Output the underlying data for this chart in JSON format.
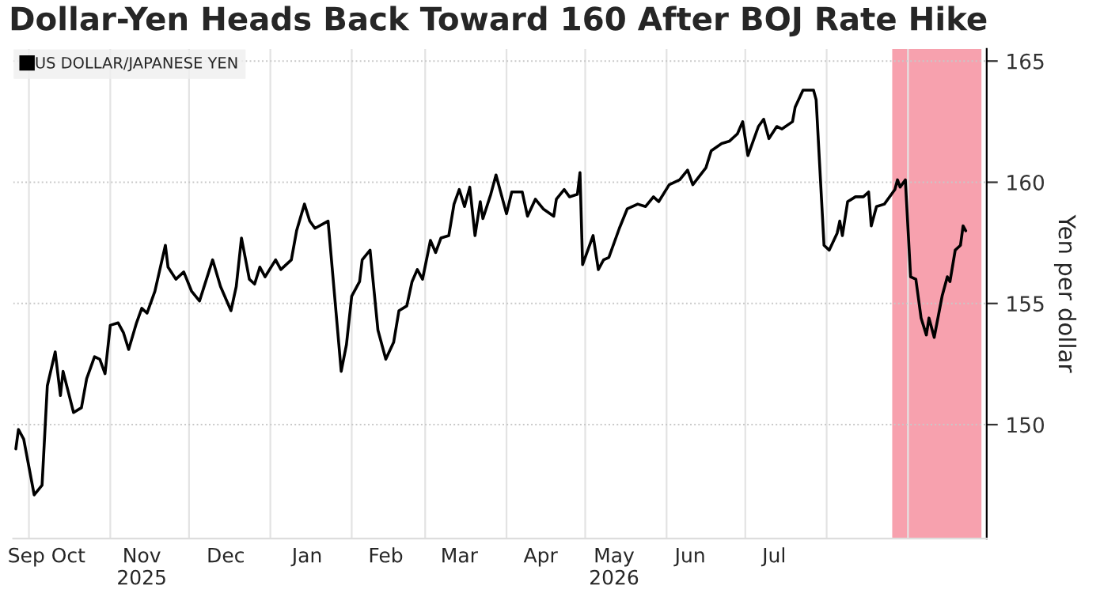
{
  "chart_data": {
    "type": "line",
    "title": "Dollar-Yen Heads Back Toward 160 After BOJ Rate Hike",
    "ylabel": "Yen per dollar",
    "x": [
      "2025-09-26",
      "2025-09-27",
      "2025-09-29",
      "2025-10-03",
      "2025-10-06",
      "2025-10-08",
      "2025-10-11",
      "2025-10-13",
      "2025-10-14",
      "2025-10-18",
      "2025-10-21",
      "2025-10-23",
      "2025-10-26",
      "2025-10-28",
      "2025-10-30",
      "2025-11-01",
      "2025-11-04",
      "2025-11-06",
      "2025-11-08",
      "2025-11-11",
      "2025-11-13",
      "2025-11-15",
      "2025-11-18",
      "2025-11-22",
      "2025-11-23",
      "2025-11-26",
      "2025-11-29",
      "2025-12-02",
      "2025-12-05",
      "2025-12-10",
      "2025-12-13",
      "2025-12-17",
      "2025-12-19",
      "2025-12-21",
      "2025-12-24",
      "2025-12-26",
      "2025-12-28",
      "2025-12-30",
      "2026-01-03",
      "2026-01-05",
      "2026-01-09",
      "2026-01-11",
      "2026-01-14",
      "2026-01-16",
      "2026-01-18",
      "2026-01-23",
      "2026-01-28",
      "2026-01-30",
      "2026-02-01",
      "2026-02-04",
      "2026-02-05",
      "2026-02-08",
      "2026-02-11",
      "2026-02-14",
      "2026-02-17",
      "2026-02-19",
      "2026-02-22",
      "2026-02-24",
      "2026-02-26",
      "2026-02-28",
      "2026-03-03",
      "2026-03-05",
      "2026-03-07",
      "2026-03-10",
      "2026-03-12",
      "2026-03-14",
      "2026-03-16",
      "2026-03-18",
      "2026-03-20",
      "2026-03-22",
      "2026-03-23",
      "2026-03-26",
      "2026-03-28",
      "2026-04-01",
      "2026-04-03",
      "2026-04-07",
      "2026-04-09",
      "2026-04-12",
      "2026-04-15",
      "2026-04-19",
      "2026-04-20",
      "2026-04-23",
      "2026-04-25",
      "2026-04-28",
      "2026-04-29",
      "2026-04-30",
      "2026-05-04",
      "2026-05-06",
      "2026-05-08",
      "2026-05-10",
      "2026-05-14",
      "2026-05-17",
      "2026-05-21",
      "2026-05-24",
      "2026-05-27",
      "2026-05-29",
      "2026-06-02",
      "2026-06-06",
      "2026-06-09",
      "2026-06-11",
      "2026-06-16",
      "2026-06-18",
      "2026-06-22",
      "2026-06-25",
      "2026-06-28",
      "2026-06-30",
      "2026-07-02",
      "2026-07-06",
      "2026-07-08",
      "2026-07-10",
      "2026-07-13",
      "2026-07-15",
      "2026-07-19",
      "2026-07-20",
      "2026-07-23",
      "2026-07-27",
      "2026-07-28",
      "2026-07-31",
      "2026-08-02",
      "2026-08-05",
      "2026-08-06",
      "2026-08-07",
      "2026-08-09",
      "2026-08-12",
      "2026-08-15",
      "2026-08-17",
      "2026-08-18",
      "2026-08-20",
      "2026-08-23",
      "2026-08-27",
      "2026-08-28",
      "2026-08-29",
      "2026-08-31",
      "2026-09-02",
      "2026-09-04",
      "2026-09-06",
      "2026-09-08",
      "2026-09-09",
      "2026-09-11",
      "2026-09-14",
      "2026-09-16",
      "2026-09-17",
      "2026-09-19",
      "2026-09-21",
      "2026-09-22",
      "2026-09-23"
    ],
    "series": [
      {
        "name": "US DOLLAR/JAPANESE YEN",
        "color": "#000000",
        "values": [
          149.0,
          149.8,
          149.4,
          147.1,
          147.5,
          151.6,
          153.0,
          151.2,
          152.2,
          150.5,
          150.7,
          151.9,
          152.8,
          152.7,
          152.1,
          154.1,
          154.2,
          153.8,
          153.1,
          154.2,
          154.8,
          154.6,
          155.5,
          157.4,
          156.5,
          156.0,
          156.3,
          155.5,
          155.1,
          156.8,
          155.7,
          154.7,
          155.7,
          157.7,
          156.0,
          155.8,
          156.5,
          156.1,
          156.8,
          156.4,
          156.8,
          158.0,
          159.1,
          158.4,
          158.1,
          158.4,
          152.2,
          153.3,
          155.3,
          155.9,
          156.8,
          157.2,
          153.9,
          152.7,
          153.4,
          154.7,
          154.9,
          155.9,
          156.4,
          156.0,
          157.6,
          157.1,
          157.7,
          157.8,
          159.1,
          159.7,
          159.0,
          159.8,
          157.8,
          159.2,
          158.5,
          159.5,
          160.3,
          158.7,
          159.6,
          159.6,
          158.6,
          159.3,
          158.9,
          158.6,
          159.3,
          159.7,
          159.4,
          159.5,
          160.4,
          156.6,
          157.8,
          156.4,
          156.8,
          156.9,
          158.1,
          158.9,
          159.1,
          159.0,
          159.4,
          159.2,
          159.9,
          160.1,
          160.5,
          159.9,
          160.6,
          161.3,
          161.6,
          161.7,
          162.0,
          162.5,
          161.1,
          162.3,
          162.6,
          161.8,
          162.3,
          162.2,
          162.5,
          163.1,
          163.8,
          163.8,
          163.4,
          157.4,
          157.2,
          157.9,
          158.4,
          157.8,
          159.2,
          159.4,
          159.4,
          159.6,
          158.2,
          159.0,
          159.1,
          159.7,
          160.1,
          159.8,
          160.1,
          156.1,
          156.0,
          154.4,
          153.7,
          154.4,
          153.6,
          155.3,
          156.1,
          155.9,
          157.2,
          157.4,
          158.2,
          158.0
        ]
      }
    ],
    "xlim": [
      "2025-09-25",
      "2026-10-01"
    ],
    "xticks": [
      {
        "value": "2025-10-01",
        "label": null
      },
      {
        "value": "2025-11-01",
        "label": null
      },
      {
        "value": "2025-12-01",
        "label": null
      },
      {
        "value": "2026-01-01",
        "label": null
      },
      {
        "value": "2026-02-01",
        "label": null
      },
      {
        "value": "2026-03-01",
        "label": null
      },
      {
        "value": "2026-04-01",
        "label": null
      },
      {
        "value": "2026-05-01",
        "label": null
      },
      {
        "value": "2026-06-01",
        "label": null
      },
      {
        "value": "2026-07-01",
        "label": null
      },
      {
        "value": "2026-08-01",
        "label": null
      },
      {
        "value": "2026-09-01",
        "label": null
      },
      {
        "value": "2025-09-30",
        "label": "Sep"
      },
      {
        "value": "2025-10-16",
        "label": "Oct"
      },
      {
        "value": "2025-11-13",
        "label": "Nov\n2025"
      },
      {
        "value": "2025-12-15",
        "label": "Dec"
      },
      {
        "value": "2026-01-15",
        "label": "Jan"
      },
      {
        "value": "2026-02-14",
        "label": "Feb"
      },
      {
        "value": "2026-03-14",
        "label": "Mar"
      },
      {
        "value": "2026-04-14",
        "label": "Apr"
      },
      {
        "value": "2026-05-12",
        "label": "May\n2026"
      },
      {
        "value": "2026-06-10",
        "label": "Jun"
      },
      {
        "value": "2026-07-12",
        "label": "Jul"
      }
    ],
    "ylim": [
      145.3,
      165.5
    ],
    "yticks": [
      150,
      155,
      160,
      165
    ],
    "bands": [
      {
        "axis": "x",
        "from": "2026-08-26",
        "to": "2026-09-29",
        "color": "#f7a1ae"
      }
    ],
    "grid": true,
    "legend": "top left",
    "marker": "none",
    "line_style": "solid"
  }
}
